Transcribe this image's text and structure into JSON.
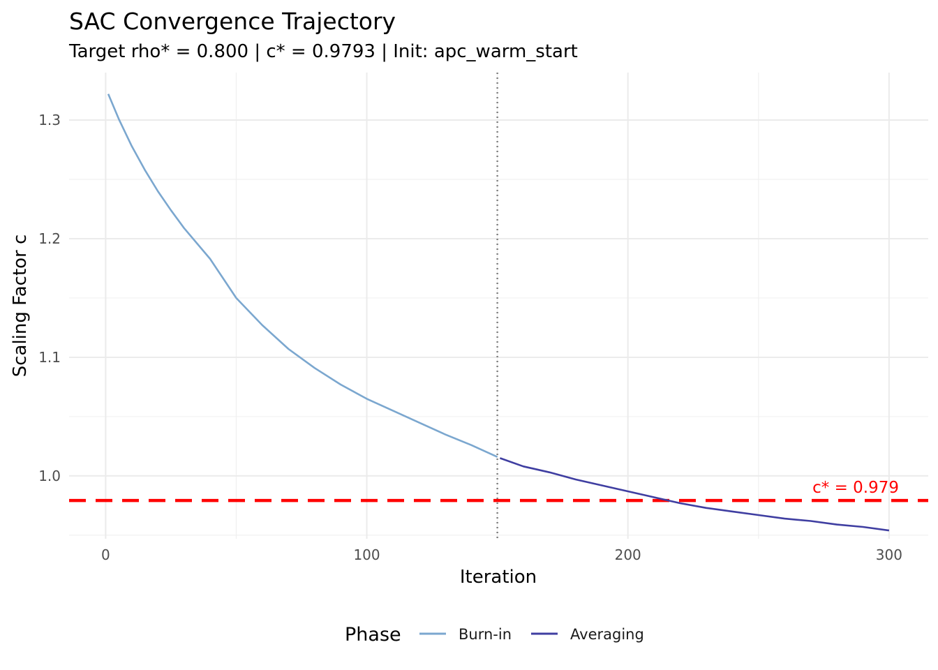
{
  "chart_data": {
    "type": "line",
    "title": "SAC Convergence Trajectory",
    "subtitle": "Target rho* = 0.800 | c* = 0.9793 | Init: apc_warm_start",
    "xlabel": "Iteration",
    "ylabel": "Scaling Factor c",
    "xlim": [
      -14,
      315
    ],
    "ylim": [
      0.947,
      1.34
    ],
    "xticks": [
      0,
      100,
      200,
      300
    ],
    "xtick_labels": [
      "0",
      "100",
      "200",
      "300"
    ],
    "yticks": [
      1.0,
      1.1,
      1.2,
      1.3
    ],
    "ytick_labels": [
      "1.0",
      "1.1",
      "1.2",
      "1.3"
    ],
    "grid": true,
    "legend": {
      "title": "Phase",
      "position": "bottom"
    },
    "series": [
      {
        "name": "Burn-in",
        "color": "#7ba7cf",
        "x": [
          1,
          5,
          10,
          15,
          20,
          25,
          30,
          40,
          50,
          60,
          70,
          80,
          90,
          100,
          110,
          120,
          130,
          140,
          150
        ],
        "y": [
          1.322,
          1.301,
          1.278,
          1.258,
          1.24,
          1.224,
          1.209,
          1.183,
          1.15,
          1.127,
          1.107,
          1.091,
          1.077,
          1.065,
          1.055,
          1.045,
          1.035,
          1.026,
          1.016
        ]
      },
      {
        "name": "Averaging",
        "color": "#3f3ea1",
        "x": [
          151,
          160,
          170,
          180,
          190,
          200,
          210,
          220,
          230,
          240,
          250,
          260,
          270,
          280,
          290,
          300
        ],
        "y": [
          1.015,
          1.008,
          1.003,
          0.997,
          0.992,
          0.987,
          0.982,
          0.977,
          0.973,
          0.97,
          0.967,
          0.964,
          0.962,
          0.959,
          0.957,
          0.954
        ]
      }
    ],
    "reference_lines": [
      {
        "orientation": "horizontal",
        "value": 0.9793,
        "style": "dashed",
        "color": "#ff0000",
        "label": "c* = 0.979"
      },
      {
        "orientation": "vertical",
        "value": 150,
        "style": "dotted",
        "color": "#808080"
      }
    ]
  }
}
